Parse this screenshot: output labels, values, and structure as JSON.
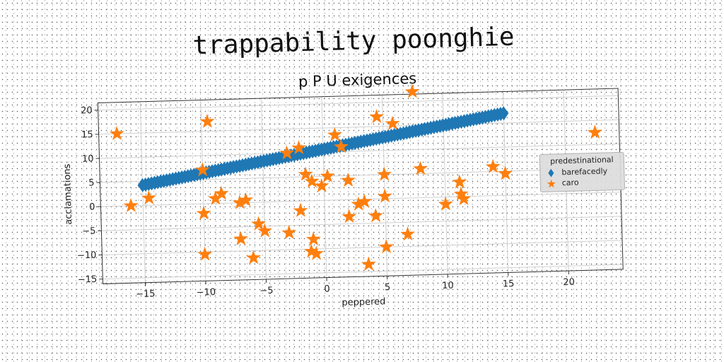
{
  "page": {
    "title": "trappability poonghie"
  },
  "chart_data": {
    "type": "scatter",
    "title": "p P U exigences",
    "xlabel": "peppered",
    "ylabel": "acclamations",
    "xlim": [
      -18.5,
      24.5
    ],
    "ylim": [
      -16,
      21.5
    ],
    "xticks": [
      -15,
      -10,
      -5,
      0,
      5,
      10,
      15,
      20
    ],
    "yticks": [
      -15,
      -10,
      -5,
      0,
      5,
      10,
      15,
      20
    ],
    "grid": true,
    "legend": {
      "title": "predestinational",
      "placement": "center-right"
    },
    "series": [
      {
        "name": "barefacedly",
        "marker": "diamond",
        "color": "#1f77b4",
        "line": {
          "x_start": -15,
          "x_end": 15,
          "y_start": 4.2,
          "y_end": 17,
          "count": 120
        }
      },
      {
        "name": "caro",
        "marker": "star",
        "color": "#ff7f0e",
        "points": [
          [
            -17,
            15
          ],
          [
            -16,
            0
          ],
          [
            -14.5,
            1.5
          ],
          [
            -10,
            7
          ],
          [
            -9.5,
            17
          ],
          [
            -10,
            -2
          ],
          [
            -9,
            1
          ],
          [
            -8.5,
            2
          ],
          [
            -10,
            -10.5
          ],
          [
            -7,
            0
          ],
          [
            -6.5,
            0.5
          ],
          [
            -7,
            -7.5
          ],
          [
            -5.5,
            -4.5
          ],
          [
            -5,
            -6
          ],
          [
            -6,
            -11.5
          ],
          [
            -3,
            10
          ],
          [
            -3,
            -6.5
          ],
          [
            -2,
            11
          ],
          [
            -2,
            -2
          ],
          [
            -1.5,
            5.5
          ],
          [
            -1,
            4
          ],
          [
            -1,
            -8
          ],
          [
            -1.2,
            -10.5
          ],
          [
            -0.8,
            -11
          ],
          [
            -0.2,
            3
          ],
          [
            0.3,
            5
          ],
          [
            1,
            13.5
          ],
          [
            1.5,
            11
          ],
          [
            2,
            4
          ],
          [
            2,
            -3.5
          ],
          [
            2.8,
            -1
          ],
          [
            3.3,
            -0.5
          ],
          [
            3.5,
            -13.5
          ],
          [
            4.2,
            -3.5
          ],
          [
            4.5,
            17
          ],
          [
            5,
            5
          ],
          [
            5,
            0.5
          ],
          [
            5,
            -10
          ],
          [
            5.8,
            15.5
          ],
          [
            6.8,
            -7.5
          ],
          [
            7.5,
            22
          ],
          [
            8,
            6
          ],
          [
            10,
            -1.5
          ],
          [
            11.2,
            3
          ],
          [
            11.3,
            0.5
          ],
          [
            11.5,
            -0.5
          ],
          [
            14,
            6
          ],
          [
            15,
            4.5
          ],
          [
            22.5,
            12.5
          ]
        ]
      }
    ]
  }
}
